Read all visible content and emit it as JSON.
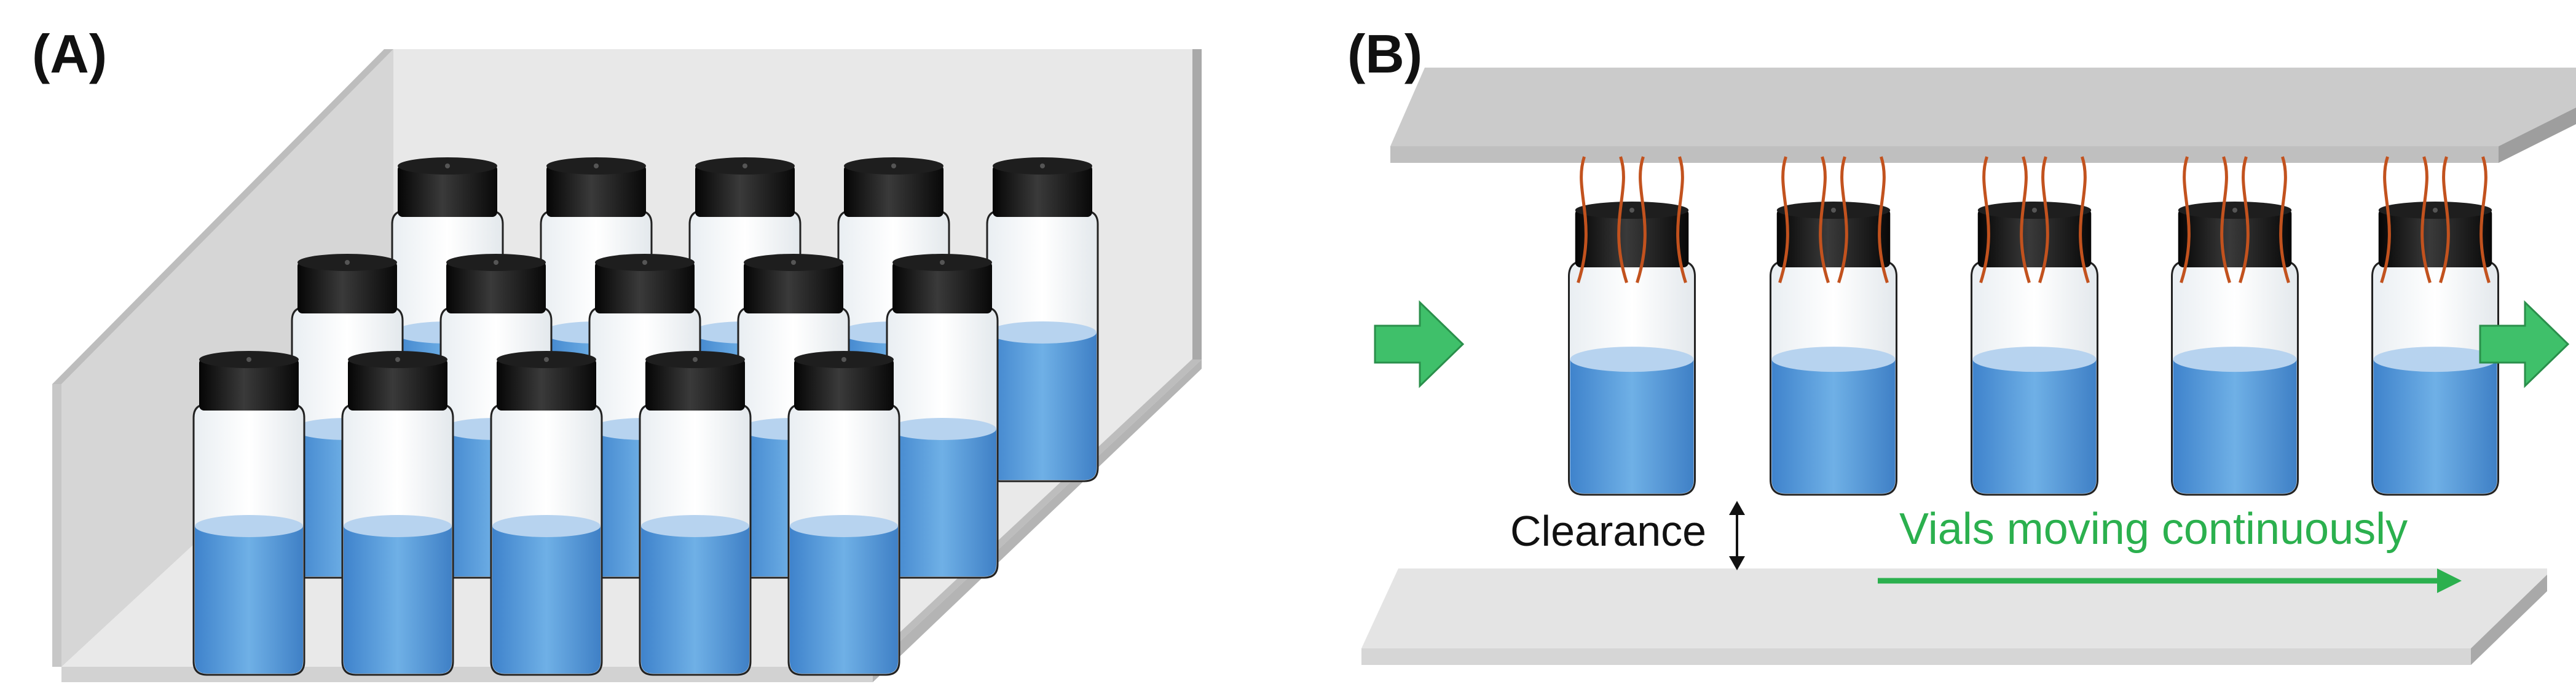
{
  "figure": {
    "panel_a": {
      "label": "(A)",
      "rows": 3,
      "vials_per_row": 5
    },
    "panel_b": {
      "label": "(B)",
      "vial_count": 5,
      "clearance_label": "Clearance",
      "motion_label": "Vials moving continuously"
    }
  },
  "colors": {
    "liquid": "#5b9bd9",
    "liquid_top": "#b7d3ef",
    "cap": "#111111",
    "coil": "#c2521e",
    "arrow_green": "#2bb04e",
    "flow_arrow": "#3fc06a",
    "plate_top": "#cfcfcf",
    "plate_side": "#a8a8a8",
    "tray_floor": "#e6e6e6",
    "tray_wall": "#c9c9c9"
  }
}
